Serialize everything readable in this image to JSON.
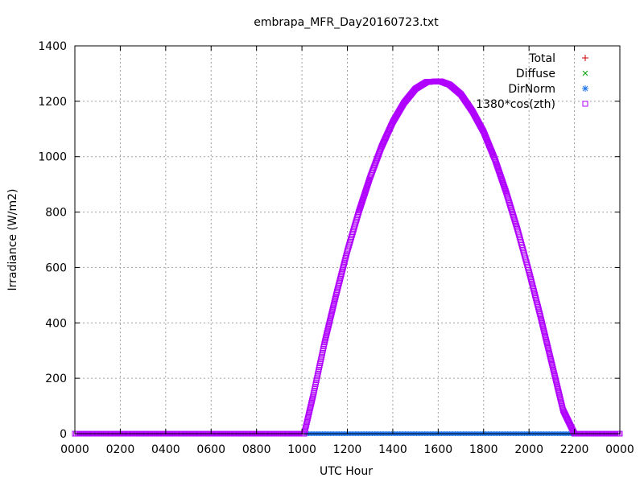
{
  "chart_data": {
    "type": "scatter",
    "title": "embrapa_MFR_Day20160723.txt",
    "xlabel": "UTC Hour",
    "ylabel": "Irradiance (W/m2)",
    "xlim": [
      0,
      24
    ],
    "ylim": [
      0,
      1400
    ],
    "x_ticks": [
      0,
      2,
      4,
      6,
      8,
      10,
      12,
      14,
      16,
      18,
      20,
      22,
      24
    ],
    "x_tick_labels": [
      "0000",
      "0200",
      "0400",
      "0600",
      "0800",
      "1000",
      "1200",
      "1400",
      "1600",
      "1800",
      "2000",
      "2200",
      "0000"
    ],
    "y_ticks": [
      0,
      200,
      400,
      600,
      800,
      1000,
      1200,
      1400
    ],
    "y_tick_labels": [
      "0",
      "200",
      "400",
      "600",
      "800",
      "1000",
      "1200",
      "1400"
    ],
    "grid": true,
    "legend_position": "top-right",
    "series": [
      {
        "name": "Total",
        "marker": "plus",
        "color": "#cc0000",
        "values_description": ""
      },
      {
        "name": "Diffuse",
        "marker": "cross",
        "color": "#00a000",
        "values_description": ""
      },
      {
        "name": "DirNorm",
        "marker": "star",
        "color": "#2277ee",
        "values_description": ""
      },
      {
        "name": "1380*cos(zth)",
        "marker": "square",
        "color": "#b000ff",
        "values_description": ""
      }
    ],
    "points": {
      "cos_zth_curve": [
        {
          "x": 0,
          "y": 0
        },
        {
          "x": 10.1,
          "y": 0
        },
        {
          "x": 10.5,
          "y": 140
        },
        {
          "x": 11.0,
          "y": 330
        },
        {
          "x": 11.5,
          "y": 500
        },
        {
          "x": 12.0,
          "y": 660
        },
        {
          "x": 12.5,
          "y": 800
        },
        {
          "x": 13.0,
          "y": 925
        },
        {
          "x": 13.5,
          "y": 1035
        },
        {
          "x": 14.0,
          "y": 1125
        },
        {
          "x": 14.5,
          "y": 1195
        },
        {
          "x": 15.0,
          "y": 1245
        },
        {
          "x": 15.5,
          "y": 1270
        },
        {
          "x": 16.1,
          "y": 1272
        },
        {
          "x": 16.5,
          "y": 1260
        },
        {
          "x": 17.0,
          "y": 1225
        },
        {
          "x": 17.5,
          "y": 1165
        },
        {
          "x": 18.0,
          "y": 1090
        },
        {
          "x": 18.5,
          "y": 990
        },
        {
          "x": 19.0,
          "y": 870
        },
        {
          "x": 19.5,
          "y": 735
        },
        {
          "x": 20.0,
          "y": 585
        },
        {
          "x": 20.5,
          "y": 425
        },
        {
          "x": 21.0,
          "y": 255
        },
        {
          "x": 21.5,
          "y": 85
        },
        {
          "x": 22.0,
          "y": 0
        },
        {
          "x": 24,
          "y": 0
        }
      ],
      "dirnorm_baseline": {
        "x_start": 10.2,
        "x_end": 22.0,
        "y": 0
      }
    }
  }
}
